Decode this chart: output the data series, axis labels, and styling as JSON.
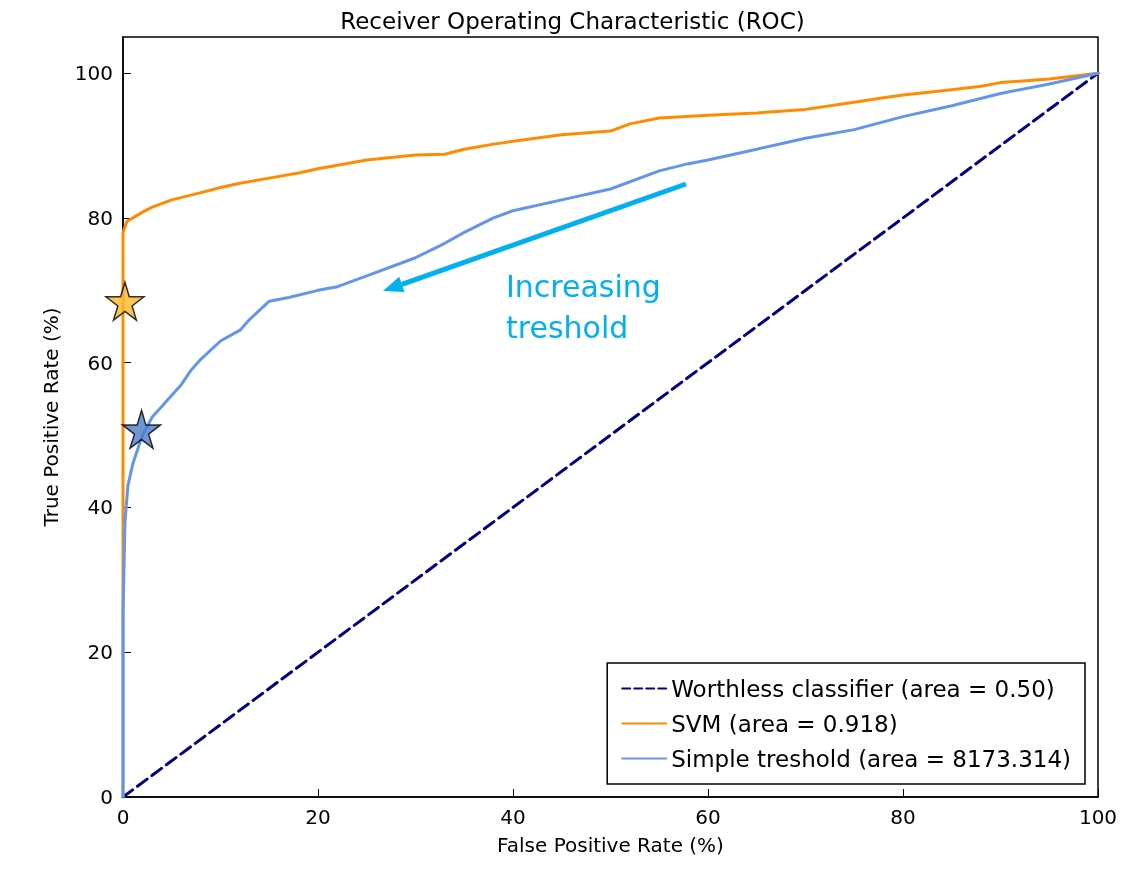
{
  "chart_data": {
    "type": "line",
    "title": "Receiver Operating Characteristic (ROC)",
    "xlabel": "False Positive Rate (%)",
    "ylabel": "True Positive Rate (%)",
    "xlim": [
      0,
      100
    ],
    "ylim": [
      0,
      105
    ],
    "xticks": [
      0,
      20,
      40,
      60,
      80,
      100
    ],
    "yticks": [
      0,
      20,
      40,
      60,
      80,
      100
    ],
    "grid": false,
    "legend": "bottom right",
    "marker": "none",
    "annotations": [
      "Increasing\ntreshold"
    ],
    "series": [
      {
        "name": "Worthless classifier (area = 0.50)",
        "color": "#000080",
        "line_style": "dashed",
        "x": [
          0,
          100
        ],
        "values": [
          0,
          100
        ]
      },
      {
        "name": "SVM (area = 0.918)",
        "color": "#ff8c00",
        "line_style": "solid",
        "x": [
          0,
          0,
          0,
          0.4,
          1,
          2,
          3,
          5,
          8,
          10,
          12,
          15,
          18,
          20,
          25,
          30,
          33,
          35,
          38,
          40,
          45,
          50,
          52,
          55,
          60,
          65,
          70,
          75,
          78,
          80,
          85,
          88,
          90,
          95,
          100
        ],
        "values": [
          0,
          40,
          78,
          79.5,
          80,
          80.8,
          81.5,
          82.5,
          83.5,
          84.2,
          84.8,
          85.5,
          86.2,
          86.8,
          88,
          88.7,
          88.8,
          89.5,
          90.2,
          90.6,
          91.5,
          92,
          93,
          93.8,
          94.2,
          94.5,
          95,
          96,
          96.6,
          97,
          97.7,
          98.2,
          98.7,
          99.2,
          100
        ]
      },
      {
        "name": "Simple treshold (area = 8173.314)",
        "color": "#6495ed",
        "line_style": "solid",
        "x": [
          0,
          0,
          0.2,
          0.5,
          1,
          2,
          3,
          4,
          5,
          6,
          7,
          8,
          10,
          12,
          13,
          15,
          17,
          20,
          22,
          25,
          28,
          30,
          33,
          35,
          38,
          40,
          45,
          50,
          55,
          58,
          60,
          65,
          70,
          75,
          80,
          85,
          90,
          95,
          100
        ],
        "values": [
          0,
          25,
          38,
          43,
          46,
          50,
          52.5,
          54,
          55.5,
          57,
          59,
          60.5,
          63,
          64.5,
          66,
          68.5,
          69,
          70,
          70.5,
          72,
          73.5,
          74.5,
          76.5,
          78,
          80,
          81,
          82.5,
          84,
          86.5,
          87.5,
          88,
          89.5,
          91,
          92.2,
          94,
          95.5,
          97.2,
          98.5,
          100
        ]
      },
      {
        "type": "scatter",
        "color": "#fbb829",
        "marker": "star",
        "x": [
          0.2
        ],
        "values": [
          68.5
        ]
      },
      {
        "type": "scatter",
        "color": "#4a7cc9",
        "marker": "star",
        "x": [
          1.9
        ],
        "values": [
          50.8
        ]
      }
    ]
  }
}
